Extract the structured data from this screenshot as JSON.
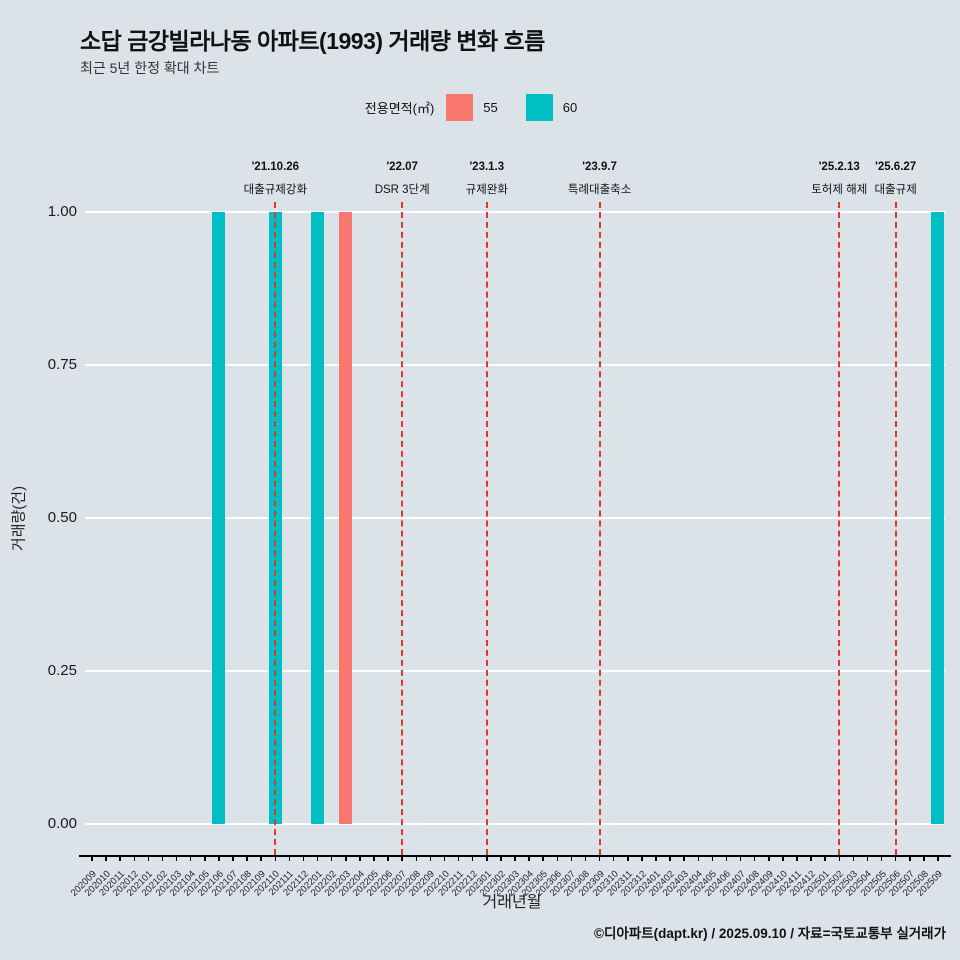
{
  "page": {
    "background": "#dbe3e9"
  },
  "chart_data": {
    "type": "bar",
    "title": "소답 금강빌라나동 아파트(1993) 거래량 변화 흐름",
    "subtitle": "최근 5년 한정 확대 차트",
    "xlabel": "거래년월",
    "ylabel": "거래량(건)",
    "ylim": [
      0,
      1.0
    ],
    "grid": "on",
    "legend_position": "top-center",
    "yticks": [
      0.0,
      0.25,
      0.5,
      0.75,
      1.0
    ],
    "ytick_labels": [
      "0.00",
      "0.25",
      "0.50",
      "0.75",
      "1.00"
    ],
    "categories": [
      "202009",
      "202010",
      "202011",
      "202012",
      "202101",
      "202102",
      "202103",
      "202104",
      "202105",
      "202106",
      "202107",
      "202108",
      "202109",
      "202110",
      "202111",
      "202112",
      "202201",
      "202202",
      "202203",
      "202204",
      "202205",
      "202206",
      "202207",
      "202208",
      "202209",
      "202210",
      "202211",
      "202212",
      "202301",
      "202302",
      "202303",
      "202304",
      "202305",
      "202306",
      "202307",
      "202308",
      "202309",
      "202310",
      "202311",
      "202312",
      "202401",
      "202402",
      "202403",
      "202404",
      "202405",
      "202406",
      "202407",
      "202408",
      "202409",
      "202410",
      "202411",
      "202412",
      "202501",
      "202502",
      "202503",
      "202504",
      "202505",
      "202506",
      "202507",
      "202508",
      "202509"
    ],
    "series": [
      {
        "name": "55",
        "color": "#F8766D",
        "points": [
          {
            "x": "202203",
            "y": 1.0
          }
        ]
      },
      {
        "name": "60",
        "color": "#00BFC4",
        "points": [
          {
            "x": "202106",
            "y": 1.0
          },
          {
            "x": "202110",
            "y": 1.0
          },
          {
            "x": "202201",
            "y": 1.0
          },
          {
            "x": "202509",
            "y": 1.0
          }
        ]
      }
    ],
    "events": [
      {
        "x": "202110",
        "date": "'21.10.26",
        "label": "대출규제강화"
      },
      {
        "x": "202207",
        "date": "'22.07",
        "label": "DSR 3단계"
      },
      {
        "x": "202301",
        "date": "'23.1.3",
        "label": "규제완화"
      },
      {
        "x": "202309",
        "date": "'23.9.7",
        "label": "특례대출축소"
      },
      {
        "x": "202502",
        "date": "'25.2.13",
        "label": "토허제 해제"
      },
      {
        "x": "202506",
        "date": "'25.6.27",
        "label": "대출규제"
      }
    ],
    "event_line_color": "#e93527",
    "legend": {
      "title": "전용면적(㎡)",
      "entries": [
        {
          "label": "55",
          "color": "#F8766D"
        },
        {
          "label": "60",
          "color": "#00BFC4"
        }
      ]
    },
    "caption": "©디아파트(dapt.kr) / 2025.09.10 / 자료=국토교통부 실거래가"
  }
}
